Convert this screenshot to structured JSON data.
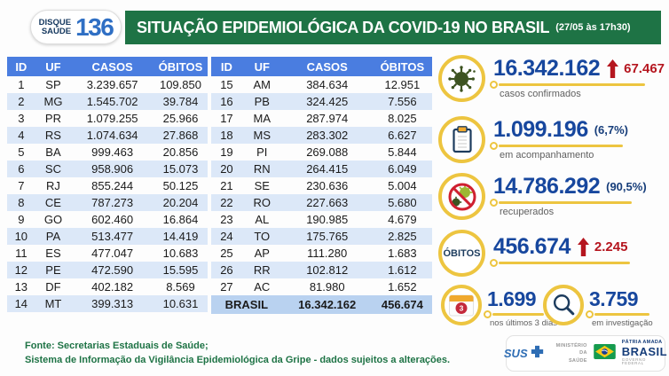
{
  "header": {
    "badge_line1": "DISQUE",
    "badge_line2": "SAÚDE",
    "badge_number": "136",
    "title": "SITUAÇÃO EPIDEMIOLÓGICA DA COVID-19 NO BRASIL",
    "timestamp": "(27/05 às 17h30)"
  },
  "tables": {
    "columns": [
      "ID",
      "UF",
      "CASOS",
      "ÓBITOS"
    ],
    "left": [
      {
        "id": "1",
        "uf": "SP",
        "casos": "3.239.657",
        "obitos": "109.850"
      },
      {
        "id": "2",
        "uf": "MG",
        "casos": "1.545.702",
        "obitos": "39.784"
      },
      {
        "id": "3",
        "uf": "PR",
        "casos": "1.079.255",
        "obitos": "25.966"
      },
      {
        "id": "4",
        "uf": "RS",
        "casos": "1.074.634",
        "obitos": "27.868"
      },
      {
        "id": "5",
        "uf": "BA",
        "casos": "999.463",
        "obitos": "20.856"
      },
      {
        "id": "6",
        "uf": "SC",
        "casos": "958.906",
        "obitos": "15.073"
      },
      {
        "id": "7",
        "uf": "RJ",
        "casos": "855.244",
        "obitos": "50.125"
      },
      {
        "id": "8",
        "uf": "CE",
        "casos": "787.273",
        "obitos": "20.204"
      },
      {
        "id": "9",
        "uf": "GO",
        "casos": "602.460",
        "obitos": "16.864"
      },
      {
        "id": "10",
        "uf": "PA",
        "casos": "513.477",
        "obitos": "14.419"
      },
      {
        "id": "11",
        "uf": "ES",
        "casos": "477.047",
        "obitos": "10.683"
      },
      {
        "id": "12",
        "uf": "PE",
        "casos": "472.590",
        "obitos": "15.595"
      },
      {
        "id": "13",
        "uf": "DF",
        "casos": "402.182",
        "obitos": "8.569"
      },
      {
        "id": "14",
        "uf": "MT",
        "casos": "399.313",
        "obitos": "10.631"
      }
    ],
    "right": [
      {
        "id": "15",
        "uf": "AM",
        "casos": "384.634",
        "obitos": "12.951"
      },
      {
        "id": "16",
        "uf": "PB",
        "casos": "324.425",
        "obitos": "7.556"
      },
      {
        "id": "17",
        "uf": "MA",
        "casos": "287.974",
        "obitos": "8.025"
      },
      {
        "id": "18",
        "uf": "MS",
        "casos": "283.302",
        "obitos": "6.627"
      },
      {
        "id": "19",
        "uf": "PI",
        "casos": "269.088",
        "obitos": "5.844"
      },
      {
        "id": "20",
        "uf": "RN",
        "casos": "264.415",
        "obitos": "6.049"
      },
      {
        "id": "21",
        "uf": "SE",
        "casos": "230.636",
        "obitos": "5.004"
      },
      {
        "id": "22",
        "uf": "RO",
        "casos": "227.663",
        "obitos": "5.680"
      },
      {
        "id": "23",
        "uf": "AL",
        "casos": "190.985",
        "obitos": "4.679"
      },
      {
        "id": "24",
        "uf": "TO",
        "casos": "175.765",
        "obitos": "2.825"
      },
      {
        "id": "25",
        "uf": "AP",
        "casos": "111.280",
        "obitos": "1.683"
      },
      {
        "id": "26",
        "uf": "RR",
        "casos": "102.812",
        "obitos": "1.612"
      },
      {
        "id": "27",
        "uf": "AC",
        "casos": "81.980",
        "obitos": "1.652"
      }
    ],
    "total": {
      "label": "BRASIL",
      "casos": "16.342.162",
      "obitos": "456.674"
    }
  },
  "stats": [
    {
      "value": "16.342.162",
      "delta": "67.467",
      "label": "casos confirmados"
    },
    {
      "value": "1.099.196",
      "pct": "(6,7%)",
      "label": "em acompanhamento"
    },
    {
      "value": "14.786.292",
      "pct": "(90,5%)",
      "label": "recuperados"
    },
    {
      "badge": "ÓBITOS",
      "value": "456.674",
      "delta": "2.245"
    },
    {
      "value": "1.699",
      "label": "nos últimos 3 dias"
    },
    {
      "value": "3.759",
      "label": "em investigação"
    }
  ],
  "footer": {
    "source_line1": "Fonte: Secretarias Estaduais de Saúde;",
    "source_line2": "Sistema de Informação da Vigilância Epidemiológica da Gripe - dados sujeitos a alterações.",
    "gov": {
      "sus": "SUS",
      "ministry_line1": "MINISTÉRIO DA",
      "ministry_line2": "SAÚDE",
      "brand_top": "PÁTRIA AMADA",
      "brand_name": "BRASIL",
      "brand_sub": "GOVERNO FEDERAL"
    }
  },
  "colors": {
    "header_green": "#1e7345",
    "table_header_blue": "#4a7de0",
    "row_alt_blue": "#dce8f8",
    "total_row_blue": "#b9d2f0",
    "value_blue": "#17479e",
    "alert_red": "#b5161f",
    "gold": "#edc540"
  },
  "chart_data": {
    "type": "table",
    "title": "Situação epidemiológica da COVID-19 no Brasil (27/05 às 17h30)",
    "columns": [
      "ID",
      "UF",
      "CASOS",
      "ÓBITOS"
    ],
    "rows": [
      [
        1,
        "SP",
        3239657,
        109850
      ],
      [
        2,
        "MG",
        1545702,
        39784
      ],
      [
        3,
        "PR",
        1079255,
        25966
      ],
      [
        4,
        "RS",
        1074634,
        27868
      ],
      [
        5,
        "BA",
        999463,
        20856
      ],
      [
        6,
        "SC",
        958906,
        15073
      ],
      [
        7,
        "RJ",
        855244,
        50125
      ],
      [
        8,
        "CE",
        787273,
        20204
      ],
      [
        9,
        "GO",
        602460,
        16864
      ],
      [
        10,
        "PA",
        513477,
        14419
      ],
      [
        11,
        "ES",
        477047,
        10683
      ],
      [
        12,
        "PE",
        472590,
        15595
      ],
      [
        13,
        "DF",
        402182,
        8569
      ],
      [
        14,
        "MT",
        399313,
        10631
      ],
      [
        15,
        "AM",
        384634,
        12951
      ],
      [
        16,
        "PB",
        324425,
        7556
      ],
      [
        17,
        "MA",
        287974,
        8025
      ],
      [
        18,
        "MS",
        283302,
        6627
      ],
      [
        19,
        "PI",
        269088,
        5844
      ],
      [
        20,
        "RN",
        264415,
        6049
      ],
      [
        21,
        "SE",
        230636,
        5004
      ],
      [
        22,
        "RO",
        227663,
        5680
      ],
      [
        23,
        "AL",
        190985,
        4679
      ],
      [
        24,
        "TO",
        175765,
        2825
      ],
      [
        25,
        "AP",
        111280,
        1683
      ],
      [
        26,
        "RR",
        102812,
        1612
      ],
      [
        27,
        "AC",
        81980,
        1652
      ]
    ],
    "total": {
      "uf": "BRASIL",
      "casos": 16342162,
      "obitos": 456674
    },
    "summary": {
      "casos_confirmados": 16342162,
      "casos_novos": 67467,
      "em_acompanhamento": 1099196,
      "em_acompanhamento_pct": "6,7%",
      "recuperados": 14786292,
      "recuperados_pct": "90,5%",
      "obitos": 456674,
      "obitos_novos": 2245,
      "obitos_ultimos_3_dias": 1699,
      "em_investigacao": 3759
    }
  }
}
